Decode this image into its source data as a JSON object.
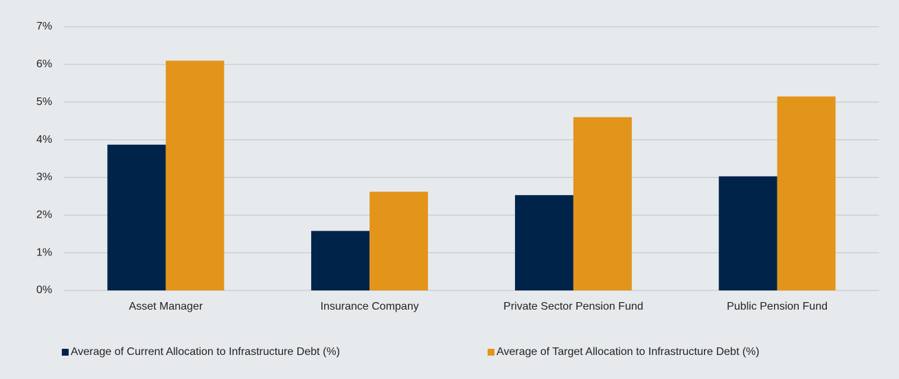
{
  "chart_data": {
    "type": "bar",
    "categories": [
      "Asset Manager",
      "Insurance Company",
      "Private Sector Pension Fund",
      "Public Pension Fund"
    ],
    "series": [
      {
        "name": "Average of Current Allocation to Infrastructure Debt (%)",
        "color": "#00234a",
        "values": [
          3.87,
          1.58,
          2.53,
          3.03
        ]
      },
      {
        "name": "Average of Target Allocation to Infrastructure Debt (%)",
        "color": "#e3941b",
        "values": [
          6.1,
          2.62,
          4.6,
          5.15
        ]
      }
    ],
    "ylim": [
      0,
      7
    ],
    "yticks": [
      {
        "value": 0,
        "label": "0%"
      },
      {
        "value": 1,
        "label": "1%"
      },
      {
        "value": 2,
        "label": "2%"
      },
      {
        "value": 3,
        "label": "3%"
      },
      {
        "value": 4,
        "label": "4%"
      },
      {
        "value": 5,
        "label": "5%"
      },
      {
        "value": 6,
        "label": "6%"
      },
      {
        "value": 7,
        "label": "7%"
      }
    ],
    "grid": true,
    "legend": "bottom"
  }
}
